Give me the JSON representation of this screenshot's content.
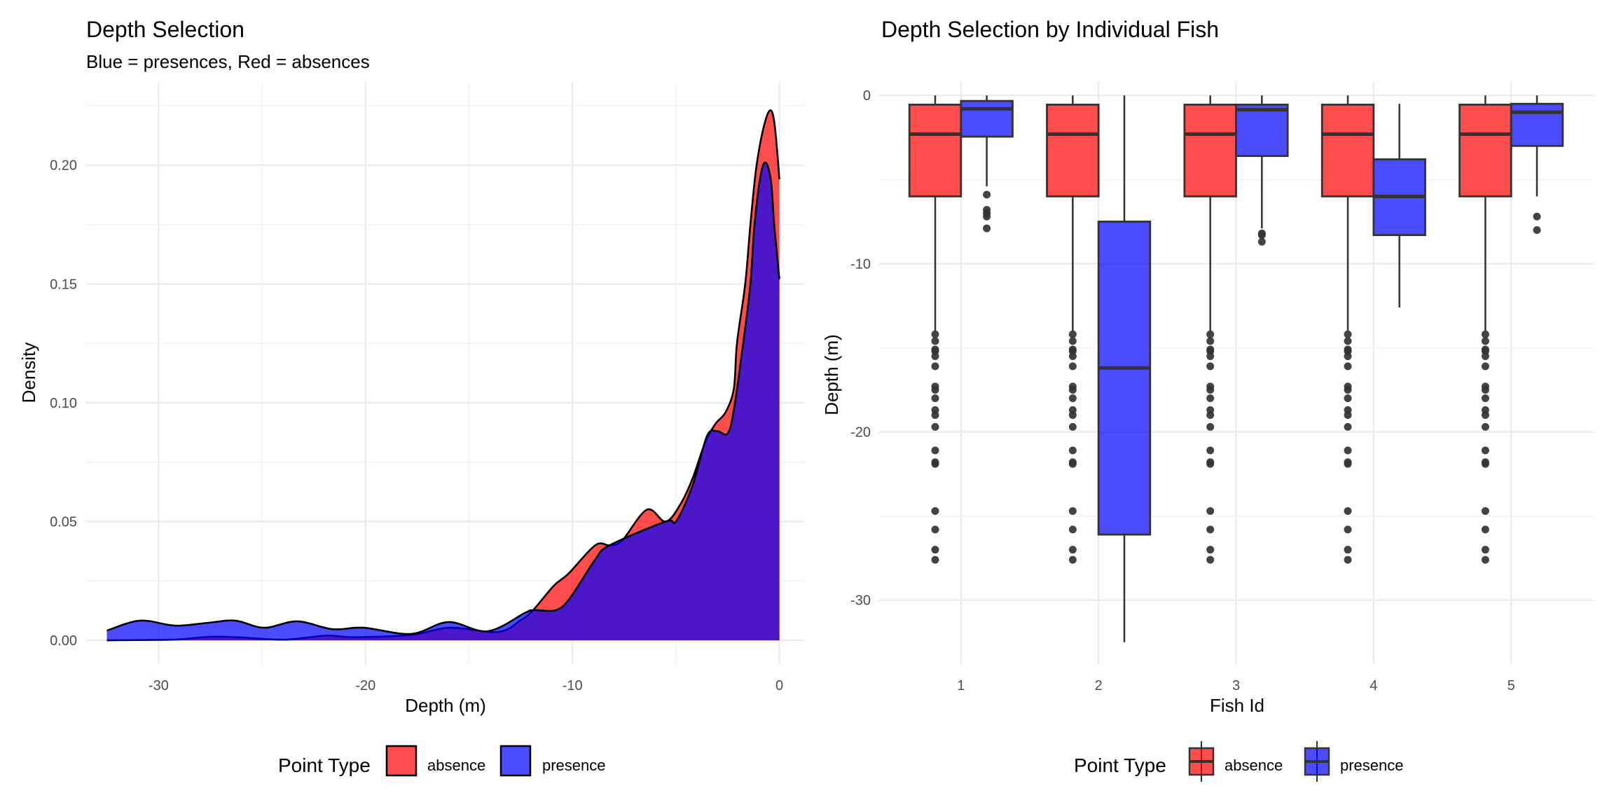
{
  "colors": {
    "absence": "#FF0000",
    "presence": "#0000FF",
    "fill_opacity": 0.7,
    "outline": "#333333",
    "density_outline": "#000000"
  },
  "chart_data": [
    {
      "type": "area",
      "subtype": "density",
      "title": "Depth Selection",
      "subtitle": "Blue = presences, Red = absences",
      "xlabel": "Depth (m)",
      "ylabel": "Density",
      "xlim": [
        -33.5,
        1.2
      ],
      "ylim": [
        -0.01,
        0.235
      ],
      "xticks": [
        -30,
        -20,
        -10,
        0
      ],
      "xtick_labels": [
        "-30",
        "-20",
        "-10",
        "0"
      ],
      "yticks": [
        0,
        0.05,
        0.1,
        0.15,
        0.2
      ],
      "ytick_labels": [
        "0.00",
        "0.05",
        "0.10",
        "0.15",
        "0.20"
      ],
      "grid": true,
      "legend": {
        "title": "Point Type",
        "position": "bottom",
        "entries": [
          "absence",
          "presence"
        ]
      },
      "series": [
        {
          "name": "absence",
          "x": [
            -32.5,
            -30.0,
            -29.0,
            -27.5,
            -26.0,
            -23.9,
            -21.9,
            -20.6,
            -17.8,
            -15.9,
            -13.6,
            -12.5,
            -11.9,
            -10.9,
            -10.2,
            -8.9,
            -8.2,
            -7.6,
            -6.4,
            -5.5,
            -4.8,
            -4.2,
            -3.6,
            -3.1,
            -2.6,
            -2.2,
            -2.05,
            -1.65,
            -1.4,
            -1.1,
            -0.7,
            -0.4,
            -0.2,
            0.0
          ],
          "y": [
            0.0,
            0.0002,
            0.0004,
            0.0015,
            0.0012,
            0.0003,
            0.002,
            0.0013,
            0.0023,
            0.0053,
            0.0035,
            0.0085,
            0.0127,
            0.023,
            0.028,
            0.04,
            0.04,
            0.042,
            0.055,
            0.05,
            0.057,
            0.068,
            0.083,
            0.091,
            0.096,
            0.106,
            0.125,
            0.15,
            0.175,
            0.2,
            0.218,
            0.223,
            0.215,
            0.194
          ]
        },
        {
          "name": "presence",
          "x": [
            -32.5,
            -30.9,
            -29.2,
            -27.6,
            -26.3,
            -24.9,
            -23.3,
            -21.6,
            -20.1,
            -17.8,
            -16.0,
            -14.1,
            -12.3,
            -11.9,
            -10.8,
            -10.1,
            -8.9,
            -8.2,
            -5.5,
            -5.0,
            -4.2,
            -3.5,
            -3.0,
            -2.5,
            -2.2,
            -1.75,
            -1.4,
            -1.2,
            -0.9,
            -0.65,
            -0.4,
            -0.25,
            0.0
          ],
          "y": [
            0.0041,
            0.0083,
            0.0062,
            0.0074,
            0.0083,
            0.0053,
            0.008,
            0.0047,
            0.0053,
            0.0027,
            0.0077,
            0.0038,
            0.0115,
            0.0127,
            0.0127,
            0.018,
            0.034,
            0.04,
            0.05,
            0.05,
            0.065,
            0.086,
            0.088,
            0.087,
            0.097,
            0.125,
            0.15,
            0.175,
            0.196,
            0.201,
            0.193,
            0.175,
            0.152
          ]
        }
      ]
    },
    {
      "type": "box",
      "title": "Depth Selection by Individual Fish",
      "xlabel": "Fish Id",
      "ylabel": "Depth (m)",
      "categories": [
        "1",
        "2",
        "3",
        "4",
        "5"
      ],
      "ylim": [
        -33.8,
        0.8
      ],
      "yticks": [
        0,
        -10,
        -20,
        -30
      ],
      "ytick_labels": [
        "0",
        "-10",
        "-20",
        "-30"
      ],
      "grid": true,
      "legend": {
        "title": "Point Type",
        "position": "bottom",
        "entries": [
          "absence",
          "presence"
        ]
      },
      "series": [
        {
          "name": "absence",
          "boxes": [
            {
              "fish": "1",
              "whisker_high": 0.0,
              "q3": -0.55,
              "median": -2.3,
              "q1": -6.0,
              "whisker_low": -14.0,
              "outliers": [
                -14.2,
                -14.6,
                -15.1,
                -15.2,
                -15.5,
                -16.1,
                -17.3,
                -17.5,
                -18.0,
                -18.7,
                -19.0,
                -19.7,
                -21.1,
                -21.8,
                -21.9,
                -24.7,
                -25.8,
                -27.0,
                -27.6
              ]
            },
            {
              "fish": "2",
              "whisker_high": 0.0,
              "q3": -0.55,
              "median": -2.3,
              "q1": -6.0,
              "whisker_low": -14.0,
              "outliers": [
                -14.2,
                -14.6,
                -15.1,
                -15.2,
                -15.5,
                -16.1,
                -17.3,
                -17.5,
                -18.0,
                -18.7,
                -19.0,
                -19.7,
                -21.1,
                -21.8,
                -21.9,
                -24.7,
                -25.8,
                -27.0,
                -27.6
              ]
            },
            {
              "fish": "3",
              "whisker_high": 0.0,
              "q3": -0.55,
              "median": -2.3,
              "q1": -6.0,
              "whisker_low": -14.0,
              "outliers": [
                -14.2,
                -14.6,
                -15.1,
                -15.2,
                -15.5,
                -16.1,
                -17.3,
                -17.5,
                -18.0,
                -18.7,
                -19.0,
                -19.7,
                -21.1,
                -21.8,
                -21.9,
                -24.7,
                -25.8,
                -27.0,
                -27.6
              ]
            },
            {
              "fish": "4",
              "whisker_high": 0.0,
              "q3": -0.55,
              "median": -2.3,
              "q1": -6.0,
              "whisker_low": -14.0,
              "outliers": [
                -14.2,
                -14.6,
                -15.1,
                -15.2,
                -15.5,
                -16.1,
                -17.3,
                -17.5,
                -18.0,
                -18.7,
                -19.0,
                -19.7,
                -21.1,
                -21.8,
                -21.9,
                -24.7,
                -25.8,
                -27.0,
                -27.6
              ]
            },
            {
              "fish": "5",
              "whisker_high": 0.0,
              "q3": -0.55,
              "median": -2.3,
              "q1": -6.0,
              "whisker_low": -14.0,
              "outliers": [
                -14.2,
                -14.6,
                -15.1,
                -15.2,
                -15.5,
                -16.1,
                -17.3,
                -17.5,
                -18.0,
                -18.7,
                -19.0,
                -19.7,
                -21.1,
                -21.8,
                -21.9,
                -24.7,
                -25.8,
                -27.0,
                -27.6
              ]
            }
          ]
        },
        {
          "name": "presence",
          "boxes": [
            {
              "fish": "1",
              "whisker_high": 0.0,
              "q3": -0.33,
              "median": -0.8,
              "q1": -2.45,
              "whisker_low": -5.4,
              "outliers": [
                -5.9,
                -6.8,
                -7.0,
                -7.2,
                -7.9
              ]
            },
            {
              "fish": "2",
              "whisker_high": 0.0,
              "q3": -7.5,
              "median": -16.2,
              "q1": -26.1,
              "whisker_low": -32.5,
              "outliers": []
            },
            {
              "fish": "3",
              "whisker_high": 0.0,
              "q3": -0.55,
              "median": -0.85,
              "q1": -3.6,
              "whisker_low": -7.9,
              "outliers": [
                -8.2,
                -8.3,
                -8.7
              ]
            },
            {
              "fish": "4",
              "whisker_high": -0.5,
              "q3": -3.8,
              "median": -6.0,
              "q1": -8.3,
              "whisker_low": -12.6,
              "outliers": []
            },
            {
              "fish": "5",
              "whisker_high": 0.0,
              "q3": -0.5,
              "median": -1.0,
              "q1": -3.0,
              "whisker_low": -6.0,
              "outliers": [
                -7.2,
                -8.0
              ]
            }
          ]
        }
      ]
    }
  ]
}
